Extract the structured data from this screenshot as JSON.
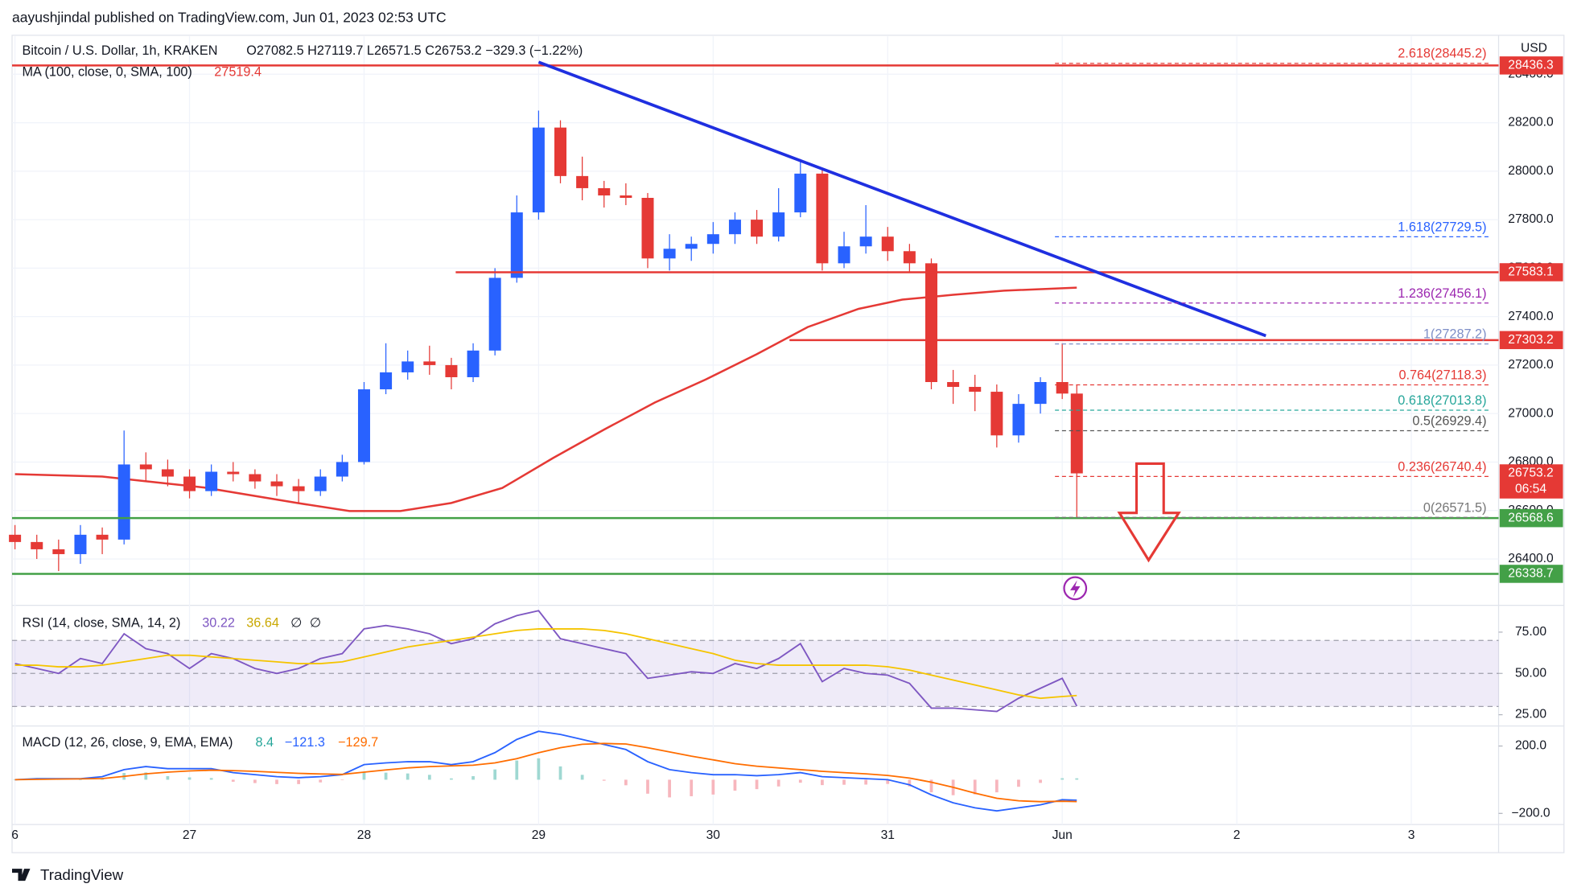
{
  "header": {
    "published": "aayushjindal published on TradingView.com, Jun 01, 2023 02:53 UTC",
    "logo": "TradingView"
  },
  "chart_data": [
    {
      "type": "candlestick",
      "title": "Bitcoin / U.S. Dollar, 1h, KRAKEN",
      "ohlc_text": "O27082.5 H27119.7 L26571.5 C26753.2 −329.3 (−1.22%)",
      "currency": "USD",
      "x": [
        0,
        3,
        6,
        9,
        12,
        15,
        18,
        21,
        24,
        27,
        30,
        33,
        36,
        39,
        42,
        45,
        48,
        51,
        54,
        57,
        60,
        63,
        66,
        69,
        72,
        75,
        78,
        81,
        84,
        87,
        90,
        93,
        96,
        99,
        102,
        105,
        108,
        111,
        114,
        117,
        120,
        123,
        126,
        129,
        132,
        135,
        138,
        141,
        144,
        146
      ],
      "open": [
        26500,
        26470,
        26440,
        26420,
        26500,
        26480,
        26790,
        26770,
        26740,
        26680,
        26760,
        26750,
        26720,
        26700,
        26680,
        26740,
        26800,
        27100,
        27170,
        27215,
        27200,
        27150,
        27260,
        27560,
        27830,
        28180,
        27980,
        27930,
        27900,
        27890,
        27640,
        27680,
        27700,
        27740,
        27800,
        27730,
        27830,
        27990,
        27620,
        27690,
        27730,
        27670,
        27620,
        27130,
        27110,
        27090,
        26910,
        27040,
        27130,
        27082.5
      ],
      "high": [
        26540,
        26500,
        26480,
        26540,
        26530,
        26930,
        26840,
        26810,
        26770,
        26790,
        26800,
        26770,
        26750,
        26730,
        26770,
        26830,
        27130,
        27290,
        27260,
        27280,
        27230,
        27290,
        27600,
        27900,
        28250,
        28210,
        28060,
        27960,
        27950,
        27910,
        27740,
        27730,
        27790,
        27830,
        27840,
        27930,
        28050,
        28010,
        27750,
        27860,
        27770,
        27700,
        27640,
        27180,
        27160,
        27120,
        27080,
        27150,
        27290,
        27119.7
      ],
      "low": [
        26440,
        26400,
        26350,
        26380,
        26420,
        26460,
        26720,
        26700,
        26650,
        26660,
        26720,
        26690,
        26660,
        26630,
        26660,
        26720,
        26790,
        27080,
        27140,
        27160,
        27100,
        27130,
        27240,
        27540,
        27800,
        27950,
        27880,
        27850,
        27860,
        27600,
        27590,
        27630,
        27660,
        27700,
        27700,
        27710,
        27810,
        27590,
        27600,
        27660,
        27630,
        27580,
        27100,
        27040,
        27010,
        26860,
        26880,
        27000,
        27060,
        26571.5
      ],
      "close": [
        26470,
        26440,
        26420,
        26500,
        26480,
        26790,
        26770,
        26740,
        26680,
        26760,
        26750,
        26720,
        26700,
        26680,
        26740,
        26800,
        27100,
        27170,
        27215,
        27200,
        27150,
        27260,
        27560,
        27830,
        28180,
        27980,
        27930,
        27900,
        27890,
        27640,
        27680,
        27700,
        27740,
        27800,
        27730,
        27830,
        27990,
        27620,
        27690,
        27730,
        27670,
        27620,
        27130,
        27110,
        27090,
        26910,
        27040,
        27130,
        27082.5,
        26753.2
      ],
      "up_color": "#2962ff",
      "down_color": "#e53935",
      "indicators": [
        {
          "name": "MA (100, close, 0, SMA, 100)",
          "last": 27519.4,
          "color": "#e53935",
          "x": [
            0,
            12,
            26,
            39,
            46,
            53,
            60,
            67,
            74,
            81,
            88,
            95,
            102,
            109,
            116,
            122,
            129,
            136,
            146
          ],
          "values": [
            26750,
            26740,
            26695,
            26630,
            26598,
            26598,
            26631,
            26693,
            26817,
            26934,
            27046,
            27141,
            27245,
            27357,
            27432,
            27470,
            27490,
            27507,
            27519.4
          ]
        }
      ],
      "trendline": {
        "color": "#1f2fe0",
        "x": [
          72,
          172
        ],
        "values": [
          28450,
          27321
        ]
      },
      "levels": [
        {
          "value": 28436.3,
          "color": "#e53935"
        },
        {
          "value": 27583.1,
          "color": "#e53935",
          "x_from": 60.6
        },
        {
          "value": 27303.2,
          "color": "#e53935",
          "x_from": 106.5
        },
        {
          "value": 26568.6,
          "color": "#43a047"
        },
        {
          "value": 26338.7,
          "color": "#43a047"
        }
      ],
      "last_price": {
        "value": 26753.2,
        "countdown": "06:54",
        "color": "#e53935"
      },
      "fib": {
        "x_from": 143,
        "x_to": 203,
        "levels": [
          {
            "value": 28445.2,
            "label": "2.618(28445.2)",
            "color": "#e53935"
          },
          {
            "value": 27729.5,
            "label": "1.618(27729.5)",
            "color": "#2962ff"
          },
          {
            "value": 27456.1,
            "label": "1.236(27456.1)",
            "color": "#9c27b0"
          },
          {
            "value": 27287.2,
            "label": "1(27287.2)",
            "color": "#7e8fc7"
          },
          {
            "value": 27118.3,
            "label": "0.764(27118.3)",
            "color": "#e53935"
          },
          {
            "value": 27013.8,
            "label": "0.618(27013.8)",
            "color": "#26a69a"
          },
          {
            "value": 26929.4,
            "label": "0.5(26929.4)",
            "color": "#555555"
          },
          {
            "value": 26740.4,
            "label": "0.236(26740.4)",
            "color": "#e53935"
          },
          {
            "value": 26571.5,
            "label": "0(26571.5)",
            "color": "#777777"
          }
        ]
      },
      "xlim": [
        -0.4,
        204
      ],
      "xticks": [
        {
          "value": 0,
          "label": "6"
        },
        {
          "value": 24,
          "label": "27"
        },
        {
          "value": 48,
          "label": "28"
        },
        {
          "value": 72,
          "label": "29"
        },
        {
          "value": 96,
          "label": "30"
        },
        {
          "value": 120,
          "label": "31"
        },
        {
          "value": 144,
          "label": "Jun"
        },
        {
          "value": 168,
          "label": "2"
        },
        {
          "value": 192,
          "label": "3"
        }
      ],
      "ylim": [
        26217,
        28540
      ],
      "yticks": [
        {
          "value": 26400,
          "label": "26400.0"
        },
        {
          "value": 26600,
          "label": "26600.0"
        },
        {
          "value": 26800,
          "label": "26800.0"
        },
        {
          "value": 27000,
          "label": "27000.0"
        },
        {
          "value": 27200,
          "label": "27200.0"
        },
        {
          "value": 27400,
          "label": "27400.0"
        },
        {
          "value": 27600,
          "label": "27600.0"
        },
        {
          "value": 27800,
          "label": "27800.0"
        },
        {
          "value": 28000,
          "label": "28000.0"
        },
        {
          "value": 28200,
          "label": "28200.0"
        },
        {
          "value": 28400,
          "label": "28400.0"
        }
      ],
      "grid": true
    },
    {
      "type": "line",
      "title": "RSI (14, close, SMA, 14, 2)",
      "header_values": [
        30.22,
        36.64
      ],
      "header_extra": [
        "∅",
        "∅"
      ],
      "series": [
        {
          "color": "#7e57c2",
          "values": [
            56,
            53,
            50,
            59,
            56,
            74,
            65,
            62,
            53,
            62,
            59,
            53,
            50,
            53,
            59,
            62,
            77,
            79,
            77,
            74,
            68,
            71,
            80,
            85,
            88,
            71,
            68,
            65,
            62,
            47,
            49,
            51,
            50,
            56,
            53,
            59,
            68,
            45,
            53,
            50,
            49,
            44,
            29,
            29,
            28,
            27,
            35,
            41,
            47,
            30.22
          ]
        },
        {
          "color": "#f5c400",
          "values": [
            55,
            55,
            54,
            54,
            55,
            57,
            59,
            61,
            61,
            60,
            59,
            58,
            57,
            56,
            56,
            57,
            60,
            63,
            66,
            68,
            70,
            72,
            74,
            76,
            77,
            77,
            77,
            76,
            74,
            71,
            68,
            65,
            62,
            58,
            56,
            55,
            55,
            55,
            55,
            55,
            54,
            52,
            49,
            46,
            43,
            40,
            37,
            35,
            36,
            36.64
          ]
        }
      ],
      "band": [
        30,
        70
      ],
      "band_color": "rgba(126,87,194,0.12)",
      "dashed": [
        70,
        50,
        30
      ],
      "ylim": [
        20,
        90
      ],
      "yticks": [
        {
          "value": 25,
          "label": "25.00"
        },
        {
          "value": 50,
          "label": "50.00"
        },
        {
          "value": 75,
          "label": "75.00"
        }
      ]
    },
    {
      "type": "macd",
      "title": "MACD (12, 26, close, 9, EMA, EMA)",
      "header_values": [
        8.4,
        {
          "value": -121.3,
          "label": "−121.3"
        },
        {
          "value": -129.7,
          "label": "−129.7"
        }
      ],
      "histogram": {
        "positive_color": "#9fd8d2",
        "negative_color": "#f7b6bd",
        "values": [
          0,
          4,
          2,
          1,
          11,
          40,
          43,
          21,
          14,
          10,
          -12,
          -20,
          -26,
          -26,
          -16,
          -2,
          45,
          42,
          37,
          29,
          8,
          21,
          61,
          114,
          127,
          79,
          29,
          -6,
          -33,
          -83,
          -105,
          -98,
          -88,
          -65,
          -56,
          -40,
          -18,
          -32,
          -30,
          -29,
          -25,
          -40,
          -75,
          -92,
          -87,
          -75,
          -42,
          -19,
          9,
          8.4
        ]
      },
      "series": [
        {
          "color": "#2962ff",
          "values": [
            0,
            6,
            6,
            6,
            18,
            60,
            78,
            66,
            66,
            66,
            42,
            30,
            18,
            12,
            18,
            30,
            90,
            100,
            107,
            107,
            90,
            107,
            161,
            239,
            287,
            269,
            239,
            209,
            179,
            107,
            60,
            42,
            30,
            30,
            24,
            30,
            42,
            18,
            12,
            6,
            0,
            -30,
            -90,
            -137,
            -167,
            -185,
            -167,
            -149,
            -119,
            -121.3
          ]
        },
        {
          "color": "#ff6d00",
          "values": [
            0,
            2,
            4,
            5,
            7,
            20,
            35,
            45,
            52,
            56,
            54,
            50,
            44,
            38,
            34,
            32,
            45,
            58,
            70,
            78,
            82,
            86,
            100,
            125,
            160,
            190,
            210,
            215,
            212,
            190,
            165,
            140,
            118,
            95,
            80,
            70,
            60,
            50,
            42,
            35,
            25,
            10,
            -15,
            -45,
            -80,
            -110,
            -125,
            -130,
            -128,
            -129.7
          ]
        }
      ],
      "ylim": [
        -266,
        301
      ],
      "yticks": [
        {
          "value": 200,
          "label": "200.0"
        },
        {
          "value": -200,
          "label": "−200.0"
        }
      ]
    }
  ]
}
